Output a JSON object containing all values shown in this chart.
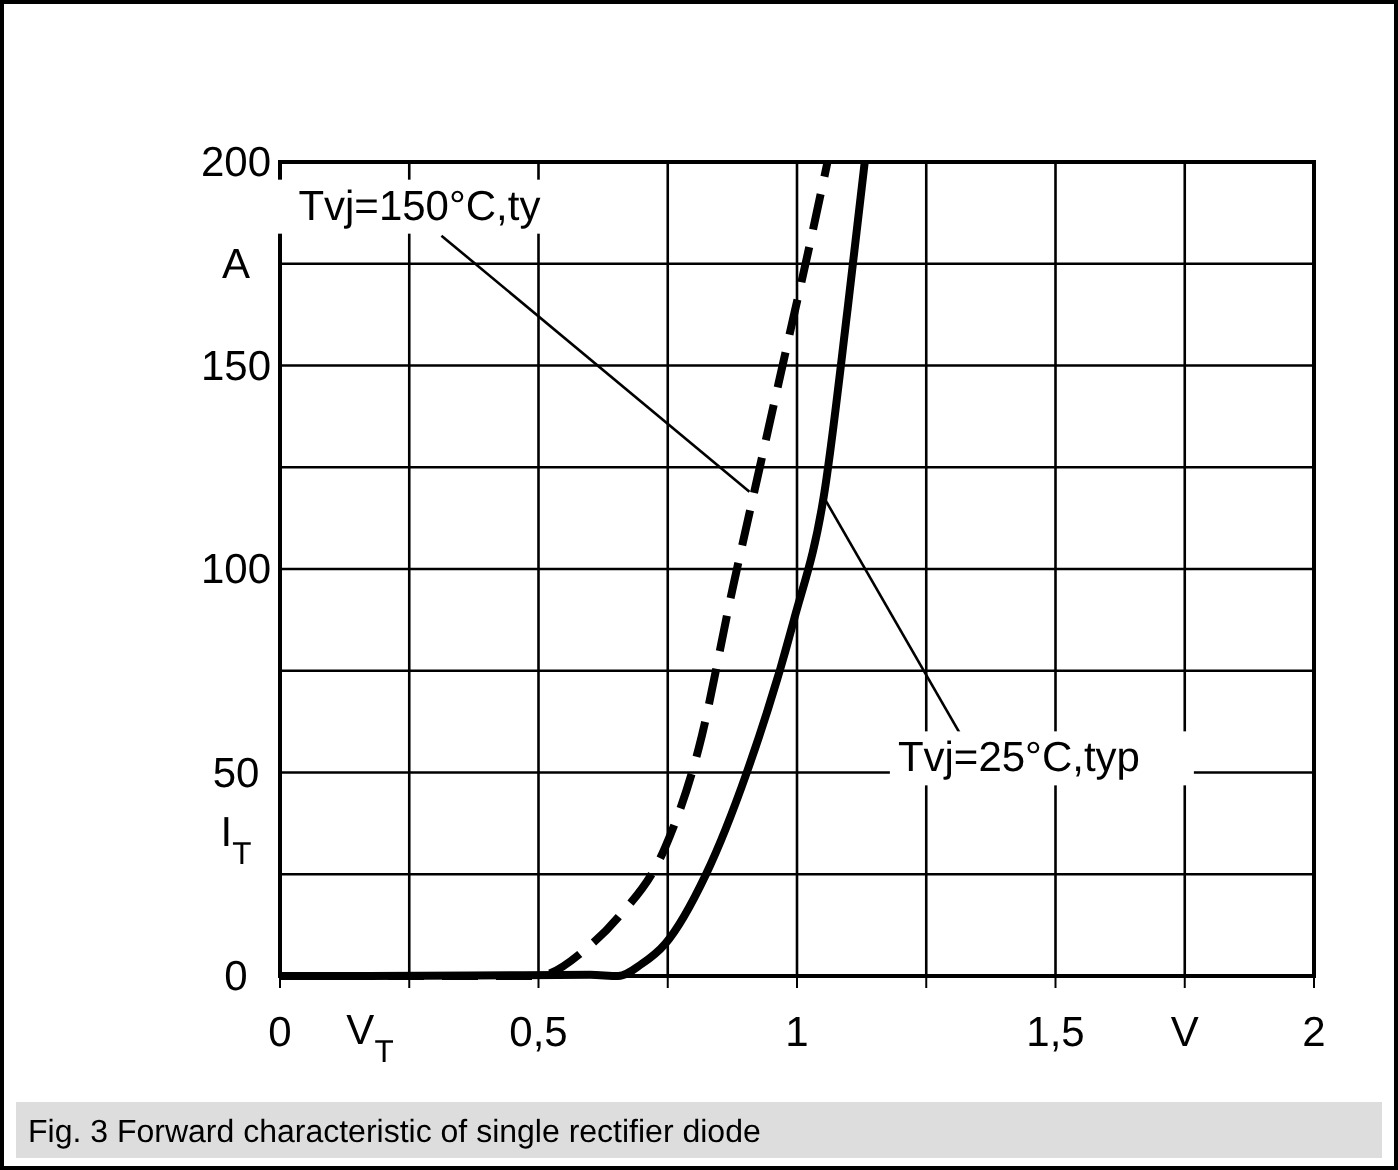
{
  "chart_data": {
    "type": "line",
    "xlabel": "V$_{T}$",
    "ylabel": "I$_{T}$",
    "xlim": [
      0,
      2
    ],
    "ylim": [
      0,
      200
    ],
    "xticks": [
      0,
      {
        "value": 0.25,
        "label": null
      },
      {
        "value": 0.5,
        "label": "0,5"
      },
      {
        "value": 0.75,
        "label": null
      },
      1,
      {
        "value": 1.25,
        "label": null
      },
      {
        "value": 1.5,
        "label": "1,5"
      },
      {
        "value": 1.75,
        "label": "V"
      },
      2
    ],
    "yticks": [
      0,
      {
        "value": 25,
        "label": null
      },
      50,
      {
        "value": 75,
        "label": null
      },
      100,
      {
        "value": 125,
        "label": null
      },
      150,
      {
        "value": 175,
        "label": "A"
      },
      200
    ],
    "grid": true,
    "series": [
      {
        "color": "#000000",
        "line_style": "solid",
        "x": [
          0,
          0.37,
          0.6,
          0.654,
          0.7,
          0.745,
          0.824,
          0.902,
          0.993,
          1.052,
          1.098,
          1.131
        ],
        "values": [
          0,
          0.1,
          0.3,
          0,
          3,
          7.9,
          25,
          49.7,
          87,
          118,
          164,
          200
        ]
      },
      {
        "color": "#000000",
        "line_style": "dashed",
        "x": [
          0,
          0.3,
          0.497,
          0.595,
          0.654,
          0.745,
          0.81,
          0.876,
          0.928,
          0.98,
          1.02,
          1.059
        ],
        "values": [
          0,
          0,
          0,
          7,
          14.4,
          31.6,
          56,
          95.5,
          125,
          154.5,
          177,
          200
        ]
      }
    ],
    "annotations": [
      {
        "text": "Tvj=150°C,ty",
        "x": 0.908,
        "y": 119
      },
      {
        "text": "Tvj=25°C,typ",
        "x": 1.052,
        "y": 117.6
      },
      "Fig. 3 Forward characteristic of single rectifier diode"
    ]
  }
}
